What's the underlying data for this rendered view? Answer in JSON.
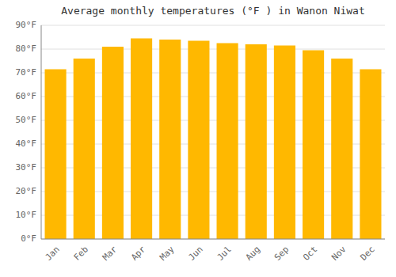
{
  "chart_data": {
    "type": "bar",
    "title": "Average monthly temperatures (°F ) in Wanon Niwat",
    "categories": [
      "Jan",
      "Feb",
      "Mar",
      "Apr",
      "May",
      "Jun",
      "Jul",
      "Aug",
      "Sep",
      "Oct",
      "Nov",
      "Dec"
    ],
    "values": [
      71.5,
      76.0,
      81.0,
      84.5,
      84.0,
      83.5,
      82.5,
      82.0,
      81.5,
      79.5,
      76.0,
      71.5
    ],
    "color": "#FFB800",
    "ylim": [
      0,
      90
    ],
    "yticks": [
      {
        "value": 0,
        "label": "0°F"
      },
      {
        "value": 10,
        "label": "10°F"
      },
      {
        "value": 20,
        "label": "20°F"
      },
      {
        "value": 30,
        "label": "30°F"
      },
      {
        "value": 40,
        "label": "40°F"
      },
      {
        "value": 50,
        "label": "50°F"
      },
      {
        "value": 60,
        "label": "60°F"
      },
      {
        "value": 70,
        "label": "70°F"
      },
      {
        "value": 80,
        "label": "80°F"
      },
      {
        "value": 90,
        "label": "90°F"
      }
    ],
    "grid": true
  }
}
